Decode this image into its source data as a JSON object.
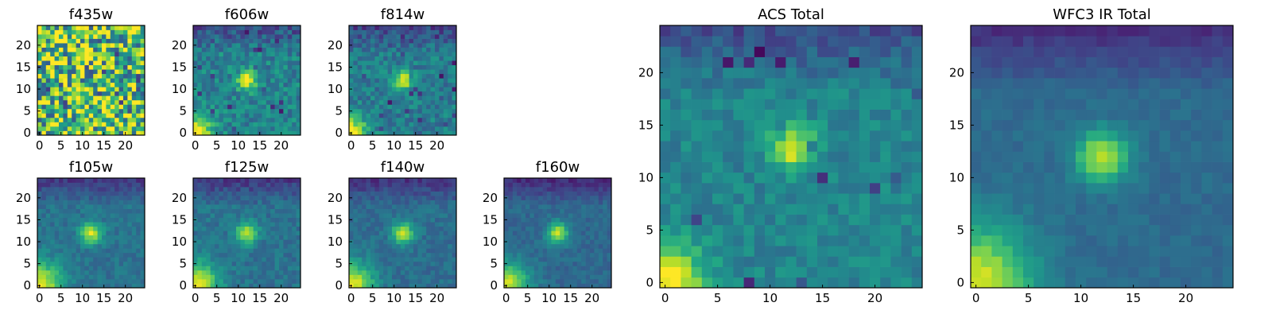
{
  "chart_data": [
    {
      "type": "heatmap",
      "title": "f435w",
      "grid_size": 25,
      "colormap": "viridis",
      "xticks": [
        0,
        5,
        10,
        15,
        20
      ],
      "yticks": [
        0,
        5,
        10,
        15,
        20
      ],
      "xlim": [
        -0.5,
        24.5
      ],
      "ylim": [
        -0.5,
        24.5
      ],
      "pattern": "noise",
      "peak": [
        12,
        12
      ],
      "description_values": {
        "background_level": 0.72,
        "noise_level": 0.55
      }
    },
    {
      "type": "heatmap",
      "title": "f606w",
      "grid_size": 25,
      "colormap": "viridis",
      "xticks": [
        0,
        5,
        10,
        15,
        20
      ],
      "yticks": [
        0,
        5,
        10,
        15,
        20
      ],
      "xlim": [
        -0.5,
        24.5
      ],
      "ylim": [
        -0.5,
        24.5
      ],
      "pattern": "source",
      "peak": [
        12,
        12
      ],
      "description_values": {
        "background_level": 0.45,
        "noise_level": 0.28
      }
    },
    {
      "type": "heatmap",
      "title": "f814w",
      "grid_size": 25,
      "colormap": "viridis",
      "xticks": [
        0,
        5,
        10,
        15,
        20
      ],
      "yticks": [
        0,
        5,
        10,
        15,
        20
      ],
      "xlim": [
        -0.5,
        24.5
      ],
      "ylim": [
        -0.5,
        24.5
      ],
      "pattern": "source",
      "peak": [
        12,
        12
      ],
      "description_values": {
        "background_level": 0.42,
        "noise_level": 0.25
      }
    },
    {
      "type": "heatmap",
      "title": "f105w",
      "grid_size": 25,
      "colormap": "viridis",
      "xticks": [
        0,
        5,
        10,
        15,
        20
      ],
      "yticks": [
        0,
        5,
        10,
        15,
        20
      ],
      "xlim": [
        -0.5,
        24.5
      ],
      "ylim": [
        -0.5,
        24.5
      ],
      "pattern": "smooth",
      "peak": [
        12,
        12
      ],
      "description_values": {
        "background_level": 0.38,
        "noise_level": 0.14
      }
    },
    {
      "type": "heatmap",
      "title": "f125w",
      "grid_size": 25,
      "colormap": "viridis",
      "xticks": [
        0,
        5,
        10,
        15,
        20
      ],
      "yticks": [
        0,
        5,
        10,
        15,
        20
      ],
      "xlim": [
        -0.5,
        24.5
      ],
      "ylim": [
        -0.5,
        24.5
      ],
      "pattern": "smooth",
      "peak": [
        12,
        12
      ],
      "description_values": {
        "background_level": 0.38,
        "noise_level": 0.16
      }
    },
    {
      "type": "heatmap",
      "title": "f140w",
      "grid_size": 25,
      "colormap": "viridis",
      "xticks": [
        0,
        5,
        10,
        15,
        20
      ],
      "yticks": [
        0,
        5,
        10,
        15,
        20
      ],
      "xlim": [
        -0.5,
        24.5
      ],
      "ylim": [
        -0.5,
        24.5
      ],
      "pattern": "smooth",
      "peak": [
        12,
        12
      ],
      "description_values": {
        "background_level": 0.36,
        "noise_level": 0.14
      }
    },
    {
      "type": "heatmap",
      "title": "f160w",
      "grid_size": 25,
      "colormap": "viridis",
      "xticks": [
        0,
        5,
        10,
        15,
        20
      ],
      "yticks": [
        0,
        5,
        10,
        15,
        20
      ],
      "xlim": [
        -0.5,
        24.5
      ],
      "ylim": [
        -0.5,
        24.5
      ],
      "pattern": "smooth",
      "peak": [
        12,
        12
      ],
      "description_values": {
        "background_level": 0.34,
        "noise_level": 0.12
      }
    },
    {
      "type": "heatmap",
      "title": "ACS Total",
      "grid_size": 25,
      "colormap": "viridis",
      "xticks": [
        0,
        5,
        10,
        15,
        20
      ],
      "yticks": [
        0,
        5,
        10,
        15,
        20
      ],
      "xlim": [
        -0.5,
        24.5
      ],
      "ylim": [
        -0.5,
        24.5
      ],
      "pattern": "source",
      "peak": [
        12,
        13
      ],
      "description_values": {
        "background_level": 0.45,
        "noise_level": 0.18
      }
    },
    {
      "type": "heatmap",
      "title": "WFC3 IR Total",
      "grid_size": 25,
      "colormap": "viridis",
      "xticks": [
        0,
        5,
        10,
        15,
        20
      ],
      "yticks": [
        0,
        5,
        10,
        15,
        20
      ],
      "xlim": [
        -0.5,
        24.5
      ],
      "ylim": [
        -0.5,
        24.5
      ],
      "pattern": "smooth",
      "peak": [
        12,
        12
      ],
      "description_values": {
        "background_level": 0.35,
        "noise_level": 0.08
      }
    }
  ]
}
